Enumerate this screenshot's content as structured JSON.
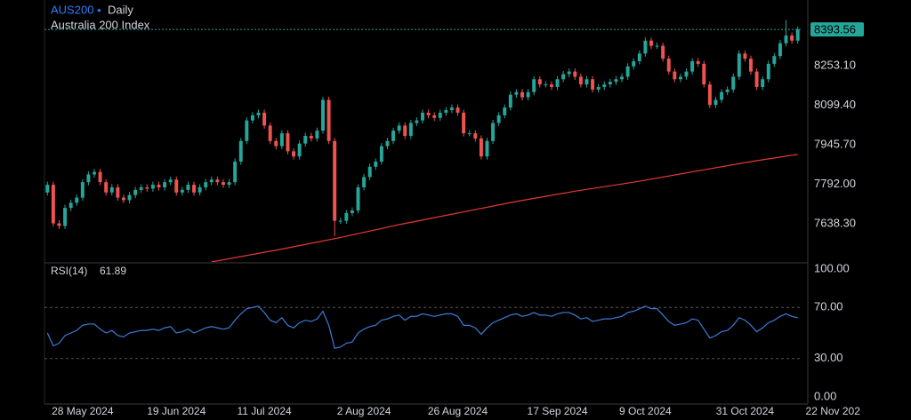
{
  "chart_data": [
    {
      "type": "candlestick",
      "title": "AUS200",
      "subtitle": "Daily",
      "description": "Australia 200 Index",
      "up_color": "#26a69a",
      "down_color": "#ef5350",
      "last_price_line": true,
      "xlim": [
        -0.5,
        128.5
      ],
      "xticks": [
        {
          "value": 6,
          "label": "28 May 2024"
        },
        {
          "value": 22,
          "label": "19 Jun 2024"
        },
        {
          "value": 37,
          "label": "11 Jul 2024"
        },
        {
          "value": 54,
          "label": "2 Aug 2024"
        },
        {
          "value": 70,
          "label": "26 Aug 2024"
        },
        {
          "value": 87,
          "label": "17 Sep 2024"
        },
        {
          "value": 102,
          "label": "9 Oct 2024"
        },
        {
          "value": 119,
          "label": "31 Oct 2024"
        },
        {
          "value": 134,
          "label": "22 Nov 202"
        }
      ],
      "ylim": [
        7490,
        8508
      ],
      "yticks": [
        {
          "value": 7638.3,
          "label": "7638.30"
        },
        {
          "value": 7792,
          "label": "7792.00"
        },
        {
          "value": 7945.7,
          "label": "7945.70"
        },
        {
          "value": 8099.4,
          "label": "8099.40"
        },
        {
          "value": 8253.1,
          "label": "8253.10"
        }
      ],
      "open": [
        7760,
        7790,
        7640,
        7630,
        7700,
        7720,
        7740,
        7800,
        7830,
        7840,
        7800,
        7760,
        7780,
        7740,
        7730,
        7750,
        7770,
        7780,
        7775,
        7790,
        7780,
        7800,
        7810,
        7760,
        7770,
        7790,
        7760,
        7780,
        7800,
        7810,
        7800,
        7790,
        7800,
        7880,
        7960,
        8040,
        8060,
        8070,
        8020,
        7960,
        7940,
        7990,
        7920,
        7900,
        7950,
        7980,
        7970,
        8000,
        8120,
        7960,
        7650,
        7650,
        7680,
        7690,
        7780,
        7820,
        7860,
        7880,
        7940,
        7960,
        8000,
        8020,
        7980,
        8030,
        8040,
        8070,
        8060,
        8050,
        8070,
        8080,
        8090,
        8070,
        7990,
        7990,
        7970,
        7900,
        7960,
        8030,
        8060,
        8090,
        8140,
        8150,
        8130,
        8150,
        8200,
        8180,
        8180,
        8170,
        8200,
        8220,
        8230,
        8210,
        8180,
        8200,
        8160,
        8170,
        8180,
        8190,
        8200,
        8210,
        8250,
        8270,
        8300,
        8350,
        8330,
        8330,
        8280,
        8230,
        8200,
        8210,
        8230,
        8270,
        8260,
        8180,
        8100,
        8120,
        8150,
        8160,
        8210,
        8300,
        8280,
        8230,
        8170,
        8200,
        8260,
        8290,
        8340,
        8370,
        8350
      ],
      "high": [
        7802,
        7802,
        7652,
        7712,
        7732,
        7752,
        7812,
        7842,
        7852,
        7852,
        7812,
        7792,
        7792,
        7752,
        7762,
        7782,
        7792,
        7792,
        7802,
        7802,
        7812,
        7822,
        7822,
        7782,
        7802,
        7802,
        7792,
        7812,
        7822,
        7822,
        7812,
        7812,
        7892,
        7972,
        8052,
        8072,
        8082,
        8082,
        8032,
        7972,
        8002,
        8002,
        7932,
        7962,
        7992,
        7992,
        8012,
        8132,
        8132,
        7972,
        7662,
        7692,
        7702,
        7792,
        7832,
        7872,
        7892,
        7952,
        7972,
        8012,
        8032,
        8032,
        8042,
        8052,
        8082,
        8082,
        8072,
        8082,
        8092,
        8102,
        8102,
        8082,
        8002,
        8002,
        7982,
        7972,
        8042,
        8072,
        8102,
        8152,
        8162,
        8162,
        8162,
        8212,
        8212,
        8192,
        8192,
        8212,
        8232,
        8242,
        8242,
        8222,
        8212,
        8212,
        8182,
        8192,
        8202,
        8212,
        8222,
        8262,
        8282,
        8312,
        8362,
        8362,
        8342,
        8342,
        8292,
        8242,
        8222,
        8242,
        8282,
        8282,
        8272,
        8192,
        8132,
        8162,
        8172,
        8222,
        8312,
        8312,
        8292,
        8242,
        8212,
        8272,
        8302,
        8352,
        8430,
        8382,
        8405
      ],
      "low": [
        7748,
        7628,
        7618,
        7618,
        7688,
        7708,
        7728,
        7788,
        7818,
        7788,
        7748,
        7748,
        7728,
        7718,
        7718,
        7738,
        7758,
        7763,
        7763,
        7768,
        7768,
        7788,
        7748,
        7748,
        7758,
        7748,
        7748,
        7768,
        7788,
        7788,
        7778,
        7778,
        7788,
        7868,
        7948,
        8028,
        8048,
        8008,
        7948,
        7928,
        7928,
        7908,
        7888,
        7888,
        7938,
        7958,
        7958,
        7988,
        7948,
        7590,
        7638,
        7638,
        7668,
        7678,
        7768,
        7808,
        7848,
        7868,
        7928,
        7948,
        7988,
        7968,
        7968,
        8018,
        8028,
        8048,
        8038,
        8038,
        8058,
        8068,
        8058,
        7978,
        7978,
        7958,
        7888,
        7888,
        7948,
        8018,
        8048,
        8078,
        8128,
        8118,
        8118,
        8138,
        8168,
        8168,
        8158,
        8158,
        8188,
        8208,
        8198,
        8168,
        8168,
        8148,
        8148,
        8158,
        8168,
        8178,
        8188,
        8198,
        8238,
        8258,
        8288,
        8318,
        8318,
        8268,
        8218,
        8188,
        8188,
        8198,
        8218,
        8248,
        8168,
        8088,
        8088,
        8108,
        8138,
        8148,
        8198,
        8268,
        8218,
        8158,
        8158,
        8188,
        8248,
        8278,
        8328,
        8338,
        8338
      ],
      "close": [
        7790,
        7640,
        7630,
        7700,
        7720,
        7740,
        7800,
        7830,
        7840,
        7800,
        7760,
        7780,
        7740,
        7730,
        7750,
        7770,
        7780,
        7775,
        7790,
        7780,
        7800,
        7810,
        7760,
        7770,
        7790,
        7760,
        7780,
        7800,
        7810,
        7800,
        7790,
        7800,
        7880,
        7960,
        8040,
        8060,
        8070,
        8020,
        7960,
        7940,
        7990,
        7920,
        7900,
        7950,
        7980,
        7970,
        8000,
        8120,
        7960,
        7650,
        7650,
        7680,
        7690,
        7780,
        7820,
        7860,
        7880,
        7940,
        7960,
        8000,
        8020,
        7980,
        8030,
        8040,
        8070,
        8060,
        8050,
        8070,
        8080,
        8090,
        8070,
        7990,
        7990,
        7970,
        7900,
        7960,
        8030,
        8060,
        8090,
        8140,
        8150,
        8130,
        8150,
        8200,
        8180,
        8180,
        8170,
        8200,
        8220,
        8230,
        8210,
        8180,
        8200,
        8160,
        8170,
        8180,
        8190,
        8200,
        8210,
        8250,
        8270,
        8300,
        8350,
        8330,
        8330,
        8280,
        8230,
        8200,
        8210,
        8230,
        8270,
        8260,
        8180,
        8100,
        8120,
        8150,
        8160,
        8210,
        8300,
        8280,
        8230,
        8170,
        8200,
        8260,
        8290,
        8340,
        8370,
        8350,
        8393.56
      ],
      "overlay": {
        "color": "#e53935",
        "x": [
          28,
          40,
          50,
          60,
          70,
          80,
          90,
          100,
          110,
          120,
          128
        ],
        "values": [
          7490,
          7540,
          7585,
          7635,
          7680,
          7725,
          7765,
          7800,
          7840,
          7880,
          7908
        ]
      }
    },
    {
      "type": "line",
      "title": "RSI(14)",
      "color": "#3d7bd9",
      "xlim": [
        -0.5,
        128.5
      ],
      "ylim": [
        0,
        100
      ],
      "yticks": [
        {
          "value": 0,
          "label": "0.00"
        },
        {
          "value": 30,
          "label": "30.00",
          "grid": true
        },
        {
          "value": 70,
          "label": "70.00",
          "grid": true
        },
        {
          "value": 100,
          "label": "100.00"
        }
      ],
      "values": [
        50,
        40,
        42,
        48,
        50,
        52,
        56,
        57,
        57,
        53,
        50,
        52,
        48,
        47,
        50,
        51,
        52,
        52,
        53,
        52,
        54,
        55,
        50,
        51,
        53,
        50,
        52,
        54,
        55,
        54,
        53,
        54,
        60,
        65,
        69,
        70,
        71,
        66,
        60,
        58,
        62,
        56,
        54,
        58,
        60,
        59,
        61,
        67,
        56,
        38,
        39,
        42,
        43,
        50,
        53,
        55,
        56,
        60,
        61,
        63,
        64,
        60,
        63,
        63,
        65,
        64,
        63,
        64,
        65,
        65,
        63,
        56,
        56,
        54,
        49,
        54,
        58,
        60,
        62,
        64,
        65,
        63,
        64,
        66,
        64,
        64,
        63,
        65,
        66,
        66,
        64,
        61,
        62,
        59,
        60,
        61,
        61,
        62,
        63,
        66,
        67,
        69,
        71,
        69,
        69,
        64,
        59,
        56,
        57,
        58,
        61,
        60,
        53,
        46,
        48,
        51,
        52,
        56,
        62,
        60,
        56,
        51,
        54,
        58,
        60,
        63,
        65,
        63,
        61.89
      ]
    }
  ]
}
